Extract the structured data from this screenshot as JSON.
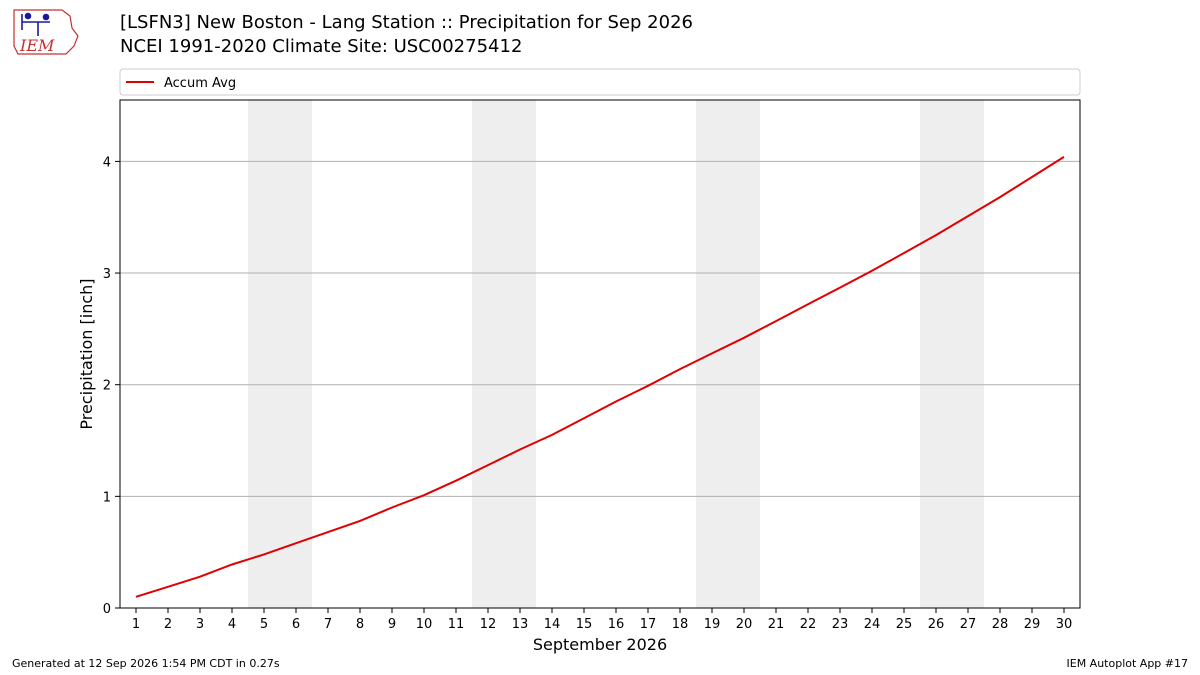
{
  "title_line1": "[LSFN3] New Boston - Lang Station :: Precipitation for Sep 2026",
  "title_line2": "NCEI 1991-2020 Climate Site: USC00275412",
  "logo_text": "IEM",
  "footer_left": "Generated at 12 Sep 2026 1:54 PM CDT in 0.27s",
  "footer_right": "IEM Autoplot App #17",
  "colors": {
    "line": "#e00000",
    "weekend_band": "#eeeeee",
    "grid": "#b0b0b0"
  },
  "chart_data": {
    "type": "line",
    "xlabel": "September 2026",
    "ylabel": "Precipitation [inch]",
    "x": [
      1,
      2,
      3,
      4,
      5,
      6,
      7,
      8,
      9,
      10,
      11,
      12,
      13,
      14,
      15,
      16,
      17,
      18,
      19,
      20,
      21,
      22,
      23,
      24,
      25,
      26,
      27,
      28,
      29,
      30
    ],
    "xlim": [
      0.5,
      30.5
    ],
    "ylim": [
      0,
      4.55
    ],
    "yticks": [
      0,
      1,
      2,
      3,
      4
    ],
    "grid": "horizontal",
    "legend": {
      "placement": "top",
      "entries": [
        "Accum Avg"
      ]
    },
    "weekend_bands": [
      [
        5,
        6
      ],
      [
        12,
        13
      ],
      [
        19,
        20
      ],
      [
        26,
        27
      ]
    ],
    "series": [
      {
        "name": "Accum Avg",
        "color": "#e00000",
        "values": [
          0.1,
          0.19,
          0.28,
          0.39,
          0.48,
          0.58,
          0.68,
          0.78,
          0.9,
          1.01,
          1.14,
          1.28,
          1.42,
          1.55,
          1.7,
          1.85,
          1.99,
          2.14,
          2.28,
          2.42,
          2.57,
          2.72,
          2.87,
          3.02,
          3.18,
          3.34,
          3.51,
          3.68,
          3.86,
          4.04
        ]
      }
    ]
  }
}
